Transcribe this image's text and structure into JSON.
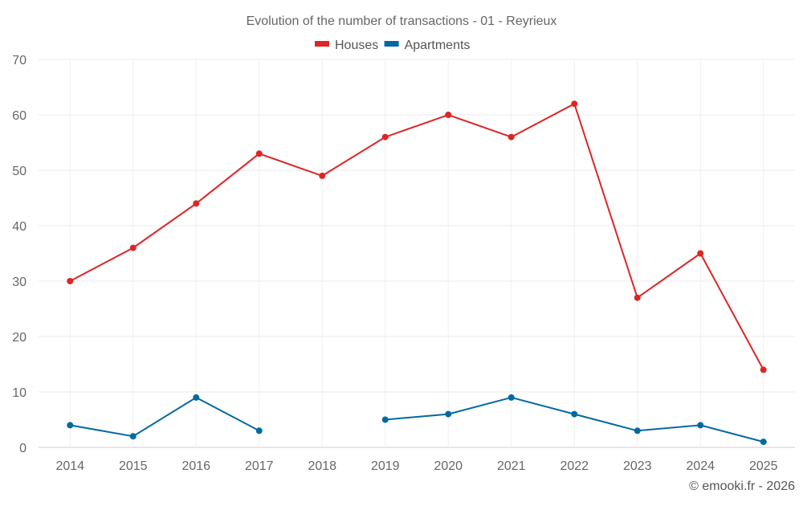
{
  "chart_data": {
    "type": "line",
    "title": "Evolution of the number of transactions - 01 - Reyrieux",
    "categories": [
      "2014",
      "2015",
      "2016",
      "2017",
      "2018",
      "2019",
      "2020",
      "2021",
      "2022",
      "2023",
      "2024",
      "2025"
    ],
    "series": [
      {
        "name": "Houses",
        "color": "#dc2626",
        "values": [
          30,
          36,
          44,
          53,
          49,
          56,
          60,
          56,
          62,
          27,
          35,
          14
        ]
      },
      {
        "name": "Apartments",
        "color": "#0369a1",
        "values": [
          4,
          2,
          9,
          3,
          null,
          5,
          6,
          9,
          6,
          3,
          4,
          1
        ]
      }
    ],
    "ylim": [
      0,
      70
    ],
    "yticks": [
      0,
      10,
      20,
      30,
      40,
      50,
      60,
      70
    ],
    "grid": true,
    "legend": "top-center",
    "xlabel": "",
    "ylabel": ""
  },
  "credit": "© emooki.fr - 2026"
}
